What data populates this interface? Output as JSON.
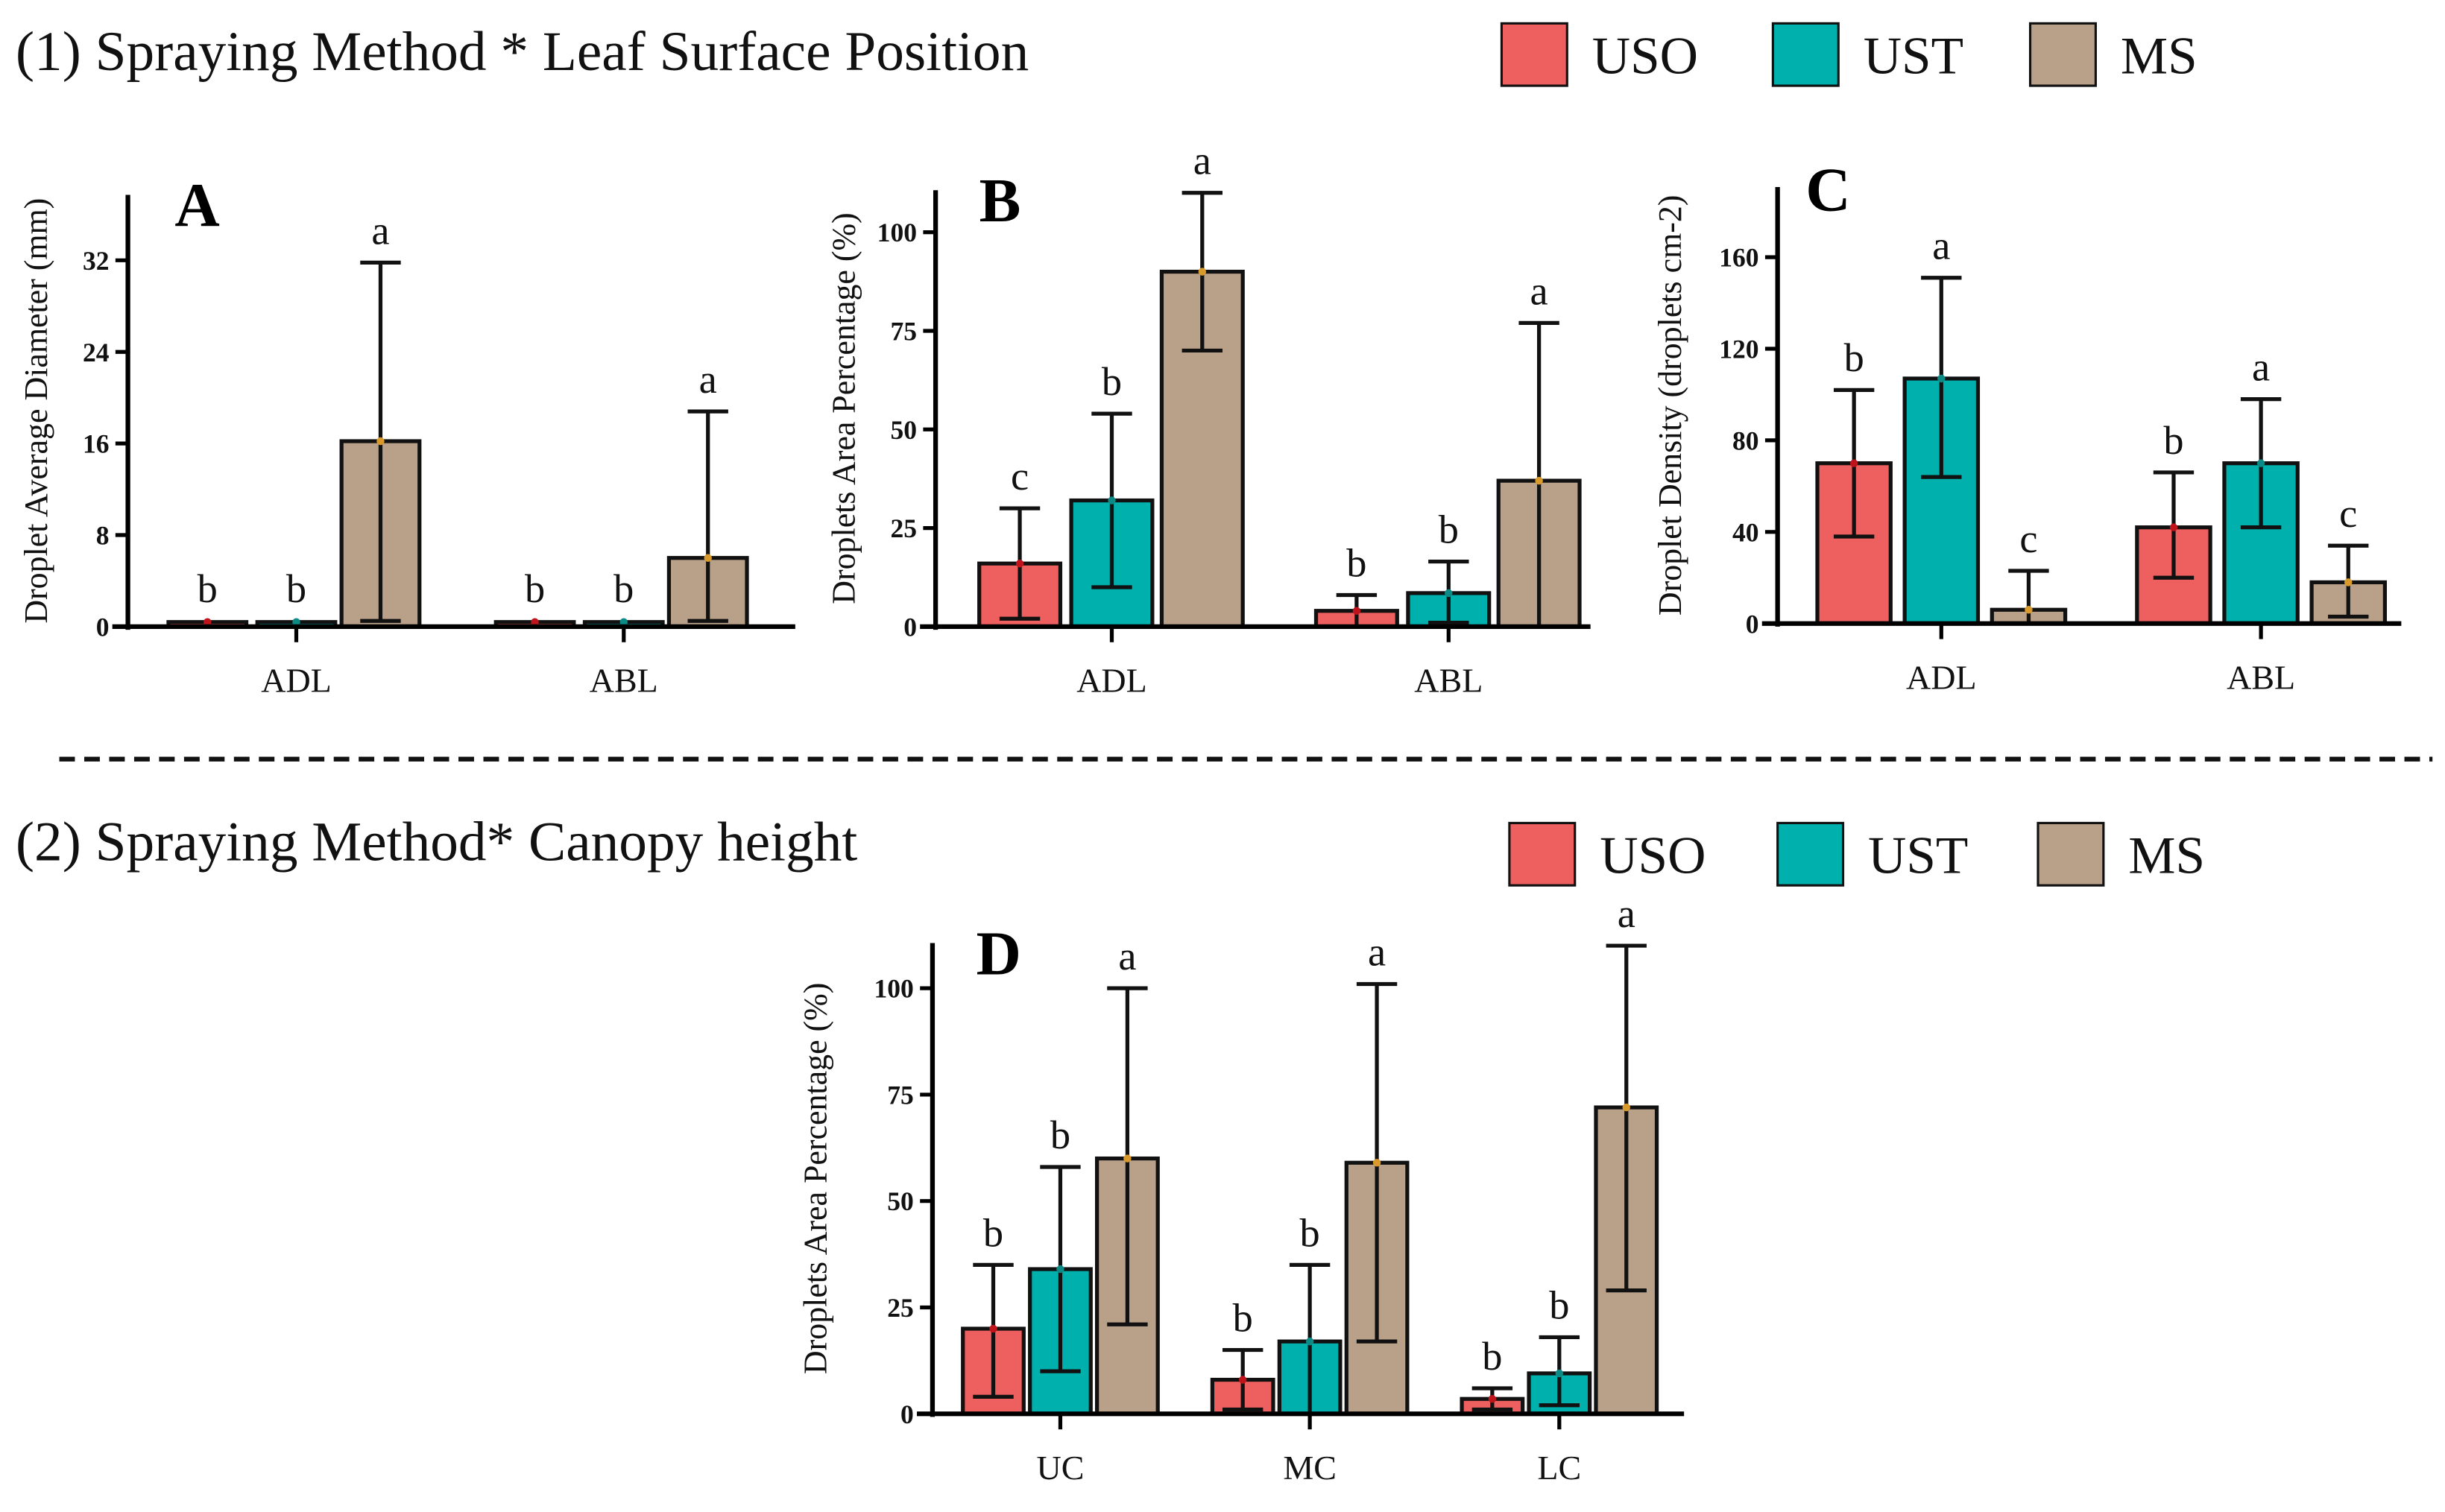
{
  "section1_title": "(1) Spraying Method * Leaf Surface Position",
  "section2_title": "(2) Spraying Method* Canopy height",
  "legend": [
    {
      "name": "USO",
      "color": "#ee5f5f",
      "dot": "#c0141c"
    },
    {
      "name": "UST",
      "color": "#00b0ad",
      "dot": "#0b8a86"
    },
    {
      "name": "MS",
      "color": "#b9a089",
      "dot": "#d99a2b"
    }
  ],
  "chart_data": [
    {
      "panel": "A",
      "type": "bar",
      "ylabel": "Droplet Average Diameter (mm)",
      "categories": [
        "ADL",
        "ABL"
      ],
      "yticks": [
        0,
        8,
        16,
        24,
        32
      ],
      "ylim": [
        0,
        37
      ],
      "series": [
        {
          "name": "USO",
          "values": [
            0.4,
            0.4
          ],
          "err_low": [
            0.3,
            0.3
          ],
          "err_high": [
            0.5,
            0.5
          ],
          "letters": [
            "b",
            "b"
          ]
        },
        {
          "name": "UST",
          "values": [
            0.4,
            0.4
          ],
          "err_low": [
            0.3,
            0.3
          ],
          "err_high": [
            0.5,
            0.5
          ],
          "letters": [
            "b",
            "b"
          ]
        },
        {
          "name": "MS",
          "values": [
            16.2,
            6.0
          ],
          "err_low": [
            0.5,
            0.5
          ],
          "err_high": [
            31.8,
            18.8
          ],
          "letters": [
            "a",
            "a"
          ]
        }
      ]
    },
    {
      "panel": "B",
      "type": "bar",
      "ylabel": "Droplets Area Percentage (%)",
      "categories": [
        "ADL",
        "ABL"
      ],
      "yticks": [
        0,
        25,
        50,
        75,
        100
      ],
      "ylim": [
        0,
        110
      ],
      "series": [
        {
          "name": "USO",
          "values": [
            16,
            4
          ],
          "err_low": [
            2,
            0
          ],
          "err_high": [
            30,
            8
          ],
          "letters": [
            "c",
            "b"
          ]
        },
        {
          "name": "UST",
          "values": [
            32,
            8.5
          ],
          "err_low": [
            10,
            1
          ],
          "err_high": [
            54,
            16.5
          ],
          "letters": [
            "b",
            "b"
          ]
        },
        {
          "name": "MS",
          "values": [
            90,
            37
          ],
          "err_low": [
            70,
            0
          ],
          "err_high": [
            110,
            77
          ],
          "letters": [
            "a",
            "a"
          ]
        }
      ]
    },
    {
      "panel": "C",
      "type": "bar",
      "ylabel": "Droplet Density (droplets cm-2)",
      "categories": [
        "ADL",
        "ABL"
      ],
      "yticks": [
        0,
        40,
        80,
        120,
        160
      ],
      "ylim": [
        0,
        182
      ],
      "series": [
        {
          "name": "USO",
          "values": [
            70,
            42
          ],
          "err_low": [
            38,
            20
          ],
          "err_high": [
            102,
            66
          ],
          "letters": [
            "b",
            "b"
          ]
        },
        {
          "name": "UST",
          "values": [
            107,
            70
          ],
          "err_low": [
            64,
            42
          ],
          "err_high": [
            151,
            98
          ],
          "letters": [
            "a",
            "a"
          ]
        },
        {
          "name": "MS",
          "values": [
            6,
            18
          ],
          "err_low": [
            0,
            3
          ],
          "err_high": [
            23,
            34
          ],
          "letters": [
            "c",
            "c"
          ]
        }
      ]
    },
    {
      "panel": "D",
      "type": "bar",
      "ylabel": "Droplets Area Percentage (%)",
      "categories": [
        "UC",
        "MC",
        "LC"
      ],
      "yticks": [
        0,
        25,
        50,
        75,
        100
      ],
      "ylim": [
        0,
        110
      ],
      "series": [
        {
          "name": "USO",
          "values": [
            20,
            8,
            3.5
          ],
          "err_low": [
            4,
            1,
            1
          ],
          "err_high": [
            35,
            15,
            6
          ],
          "letters": [
            "b",
            "b",
            "b"
          ]
        },
        {
          "name": "UST",
          "values": [
            34,
            17,
            9.5
          ],
          "err_low": [
            10,
            0,
            2
          ],
          "err_high": [
            58,
            35,
            18
          ],
          "letters": [
            "b",
            "b",
            "b"
          ]
        },
        {
          "name": "MS",
          "values": [
            60,
            59,
            72
          ],
          "err_low": [
            21,
            17,
            29
          ],
          "err_high": [
            100,
            101,
            110
          ],
          "letters": [
            "a",
            "a",
            "a"
          ]
        }
      ]
    }
  ]
}
